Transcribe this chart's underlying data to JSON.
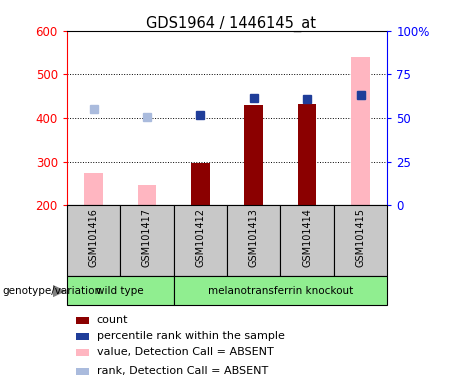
{
  "title": "GDS1964 / 1446145_at",
  "samples": [
    "GSM101416",
    "GSM101417",
    "GSM101412",
    "GSM101413",
    "GSM101414",
    "GSM101415"
  ],
  "count_values": [
    null,
    null,
    297,
    430,
    432,
    null
  ],
  "percentile_rank_values": [
    null,
    null,
    408,
    447,
    443,
    452
  ],
  "value_absent": [
    275,
    247,
    null,
    null,
    null,
    540
  ],
  "rank_absent": [
    420,
    403,
    null,
    null,
    null,
    452
  ],
  "ylim_left": [
    200,
    600
  ],
  "ylim_right": [
    0,
    100
  ],
  "yticks_left": [
    200,
    300,
    400,
    500,
    600
  ],
  "yticks_right": [
    0,
    25,
    50,
    75,
    100
  ],
  "ylabel_right_labels": [
    "0",
    "25",
    "50",
    "75",
    "100%"
  ],
  "color_count": "#8B0000",
  "color_percentile": "#1F3D99",
  "color_value_absent": "#FFB6C1",
  "color_rank_absent": "#AABBDD",
  "legend_labels": [
    "count",
    "percentile rank within the sample",
    "value, Detection Call = ABSENT",
    "rank, Detection Call = ABSENT"
  ],
  "group_colors": {
    "wild type": "#90EE90",
    "melanotransferrin knockout": "#90EE90"
  },
  "bar_width": 0.35,
  "marker_size": 6,
  "groups": [
    [
      "wild type",
      0,
      2
    ],
    [
      "melanotransferrin knockout",
      2,
      6
    ]
  ]
}
